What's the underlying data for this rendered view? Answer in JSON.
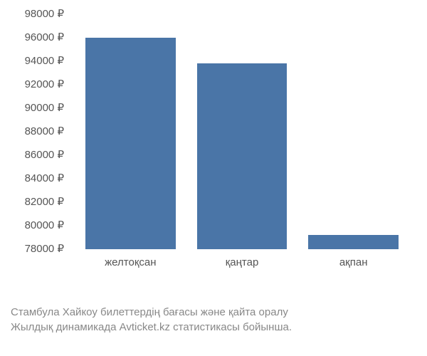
{
  "chart": {
    "type": "bar",
    "categories": [
      "желтоқсан",
      "қаңтар",
      "ақпан"
    ],
    "values": [
      96000,
      93800,
      79200
    ],
    "bar_color": "#4a75a7",
    "y_ticks": [
      98000,
      96000,
      94000,
      92000,
      90000,
      88000,
      86000,
      84000,
      82000,
      80000,
      78000
    ],
    "y_min": 78000,
    "y_max": 98000,
    "currency": "₽",
    "background_color": "#ffffff",
    "tick_fontsize": 15,
    "tick_color": "#555555",
    "bar_width_ratio": 0.75
  },
  "caption": {
    "line1": "Стамбула Хайкоу билеттердің бағасы және қайта оралу",
    "line2": "Жылдық динамикада Avticket.kz статистикасы бойынша.",
    "color": "#888888",
    "fontsize": 15
  }
}
